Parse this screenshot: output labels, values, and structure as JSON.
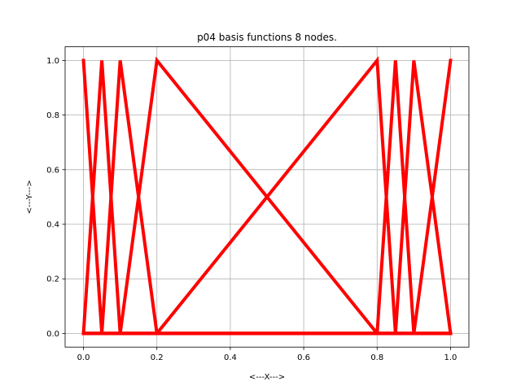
{
  "chart_data": {
    "type": "line",
    "title": "p04 basis functions 8 nodes.",
    "xlabel": "<---X--->",
    "ylabel": "<---Y--->",
    "xlim": [
      -0.05,
      1.05
    ],
    "ylim": [
      -0.05,
      1.05
    ],
    "grid": true,
    "x_ticks": [
      "0.0",
      "0.2",
      "0.4",
      "0.6",
      "0.8",
      "1.0"
    ],
    "y_ticks": [
      "0.0",
      "0.2",
      "0.4",
      "0.6",
      "0.8",
      "1.0"
    ],
    "nodes": [
      0.0,
      0.05,
      0.1,
      0.2,
      0.8,
      0.85,
      0.9,
      1.0
    ],
    "series": [
      {
        "x": [
          0.0,
          0.05,
          0.1,
          0.2,
          0.8,
          0.85,
          0.9,
          1.0
        ],
        "y": [
          1,
          0,
          0,
          0,
          0,
          0,
          0,
          0
        ]
      },
      {
        "x": [
          0.0,
          0.05,
          0.1,
          0.2,
          0.8,
          0.85,
          0.9,
          1.0
        ],
        "y": [
          0,
          1,
          0,
          0,
          0,
          0,
          0,
          0
        ]
      },
      {
        "x": [
          0.0,
          0.05,
          0.1,
          0.2,
          0.8,
          0.85,
          0.9,
          1.0
        ],
        "y": [
          0,
          0,
          1,
          0,
          0,
          0,
          0,
          0
        ]
      },
      {
        "x": [
          0.0,
          0.05,
          0.1,
          0.2,
          0.8,
          0.85,
          0.9,
          1.0
        ],
        "y": [
          0,
          0,
          0,
          1,
          0,
          0,
          0,
          0
        ]
      },
      {
        "x": [
          0.0,
          0.05,
          0.1,
          0.2,
          0.8,
          0.85,
          0.9,
          1.0
        ],
        "y": [
          0,
          0,
          0,
          0,
          1,
          0,
          0,
          0
        ]
      },
      {
        "x": [
          0.0,
          0.05,
          0.1,
          0.2,
          0.8,
          0.85,
          0.9,
          1.0
        ],
        "y": [
          0,
          0,
          0,
          0,
          0,
          1,
          0,
          0
        ]
      },
      {
        "x": [
          0.0,
          0.05,
          0.1,
          0.2,
          0.8,
          0.85,
          0.9,
          1.0
        ],
        "y": [
          0,
          0,
          0,
          0,
          0,
          0,
          1,
          0
        ]
      },
      {
        "x": [
          0.0,
          0.05,
          0.1,
          0.2,
          0.8,
          0.85,
          0.9,
          1.0
        ],
        "y": [
          0,
          0,
          0,
          0,
          0,
          0,
          0,
          1
        ]
      }
    ],
    "line_color": "#ff0000"
  }
}
